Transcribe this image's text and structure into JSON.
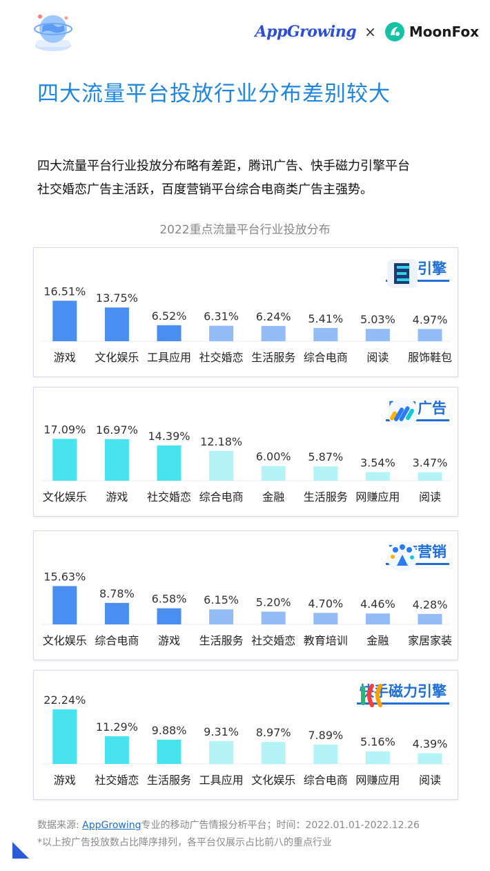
{
  "header": {
    "brand_left": "AppGrowing",
    "brand_separator": "×",
    "brand_right": "MoonFox"
  },
  "title": "四大流量平台投放行业分布差别较大",
  "summary_line1": "四大流量平台行业投放分布略有差距，腾讯广告、快手磁力引擎平台",
  "summary_line2": "社交婚恋广告主活跃，百度营销平台综合电商类广告主强势。",
  "colors": {
    "blue_dark": "#4a8ff0",
    "blue_light": "#93bcf7",
    "cyan_dark": "#47e3ef",
    "cyan_light": "#b4f4f8",
    "brand_blue": "#1f6fd6"
  },
  "chart_data": {
    "title": "2022重点流量平台行业投放分布",
    "type": "bar",
    "charts": [
      {
        "platform": "巨量引擎",
        "icon": "oceanengine-logo-icon",
        "categories": [
          "游戏",
          "文化娱乐",
          "工具应用",
          "社交婚恋",
          "生活服务",
          "综合电商",
          "阅读",
          "服饰鞋包"
        ],
        "values": [
          16.51,
          13.75,
          6.52,
          6.31,
          6.24,
          5.41,
          5.03,
          4.97
        ],
        "labels": [
          "16.51%",
          "13.75%",
          "6.52%",
          "6.31%",
          "6.24%",
          "5.41%",
          "5.03%",
          "4.97%"
        ],
        "palette": "blue",
        "dark_count": 3
      },
      {
        "platform": "腾讯广告",
        "icon": "tencent-ads-logo-icon",
        "categories": [
          "文化娱乐",
          "游戏",
          "社交婚恋",
          "综合电商",
          "金融",
          "生活服务",
          "网赚应用",
          "阅读"
        ],
        "values": [
          17.09,
          16.97,
          14.39,
          12.18,
          6.0,
          5.87,
          3.54,
          3.47
        ],
        "labels": [
          "17.09%",
          "16.97%",
          "14.39%",
          "12.18%",
          "6.00%",
          "5.87%",
          "3.54%",
          "3.47%"
        ],
        "palette": "cyan",
        "dark_count": 3
      },
      {
        "platform": "百度营销",
        "icon": "baidu-marketing-logo-icon",
        "categories": [
          "文化娱乐",
          "综合电商",
          "游戏",
          "生活服务",
          "社交婚恋",
          "教育培训",
          "金融",
          "家居家装"
        ],
        "values": [
          15.63,
          8.78,
          6.58,
          6.15,
          5.2,
          4.7,
          4.46,
          4.28
        ],
        "labels": [
          "15.63%",
          "8.78%",
          "6.58%",
          "6.15%",
          "5.20%",
          "4.70%",
          "4.46%",
          "4.28%"
        ],
        "palette": "blue",
        "dark_count": 3
      },
      {
        "platform": "快手磁力引擎",
        "icon": "kuaishou-magnetic-logo-icon",
        "categories": [
          "游戏",
          "社交婚恋",
          "生活服务",
          "工具应用",
          "文化娱乐",
          "综合电商",
          "网赚应用",
          "阅读"
        ],
        "values": [
          22.24,
          11.29,
          9.88,
          9.31,
          8.97,
          7.89,
          5.16,
          4.39
        ],
        "labels": [
          "22.24%",
          "11.29%",
          "9.88%",
          "9.31%",
          "8.97%",
          "7.89%",
          "5.16%",
          "4.39%"
        ],
        "palette": "cyan",
        "dark_count": 3
      }
    ]
  },
  "footer": {
    "source_prefix": "数据来源: ",
    "source_link": "AppGrowing",
    "source_suffix": "专业的移动广告情报分析平台；时间：2022.01.01-2022.12.26",
    "note": "*以上按广告投放数占比降序排列，各平台仅展示占比前八的重点行业"
  }
}
